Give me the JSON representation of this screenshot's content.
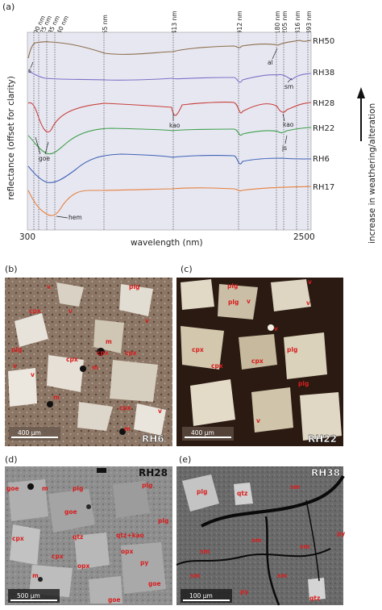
{
  "panel_a": {
    "label": "(a)",
    "wavelength_marks": [
      "390 nm",
      "425 nm",
      "485 nm",
      "540 nm",
      "965 nm",
      "1413 nm",
      "1912 nm",
      "2180 nm",
      "2205 nm",
      "2316 nm",
      "2393 nm"
    ],
    "y_axis_label": "reflectance (offset for clarity)",
    "x_axis_label": "wavelength (nm)",
    "x_min_label": "300",
    "x_max_label": "2500",
    "right_label": "increase in weathering/alteration",
    "spectra": [
      {
        "name": "RH50",
        "color": "#8c6e4a"
      },
      {
        "name": "RH38",
        "color": "#7a72c8"
      },
      {
        "name": "RH28",
        "color": "#c8413c"
      },
      {
        "name": "RH22",
        "color": "#3fa04a"
      },
      {
        "name": "RH6",
        "color": "#3f62b4"
      },
      {
        "name": "RH17",
        "color": "#e6803a"
      }
    ],
    "annotations": {
      "s": "s",
      "al": "al",
      "sm": "sm",
      "goe": "goe",
      "kao1": "kao",
      "kao2": "kao",
      "js": "js",
      "hem": "hem"
    }
  },
  "panel_b": {
    "label": "(b)",
    "sample": "RH6",
    "scale": "400 µm",
    "minerals": {
      "v1": "v",
      "plg1": "plg",
      "cpx1": "cpx",
      "v2": "v",
      "v3": "v",
      "cpx2": "cpx",
      "m1": "m",
      "plg2": "plg",
      "v4": "v",
      "m2": "m",
      "cpx3": "cpx",
      "cpx4": "cpx",
      "v5": "v",
      "m3": "m",
      "cpx5": "cpx",
      "v6": "v",
      "m4": "m"
    }
  },
  "panel_c": {
    "label": "(c)",
    "sample": "RH22",
    "scale": "400 µm",
    "minerals": {
      "plg1": "plg",
      "v1": "v",
      "plg2": "plg",
      "v2": "v",
      "v3": "v",
      "cpx1": "cpx",
      "v4": "v",
      "plg3": "plg",
      "cpx2": "cpx",
      "cpx3": "cpx",
      "plg4": "plg",
      "v5": "v"
    }
  },
  "panel_d": {
    "label": "(d)",
    "sample": "RH28",
    "scale": "500 µm",
    "minerals": {
      "goe1": "goe",
      "m1": "m",
      "plg1": "plg",
      "plg2": "plg",
      "goe2": "goe",
      "cpx1": "cpx",
      "qtz": "qtz",
      "qtzkao": "qtz+kao",
      "plg3": "plg",
      "cpx2": "cpx",
      "opx1": "opx",
      "py": "py",
      "m2": "m",
      "opx2": "opx",
      "goe3": "goe",
      "goe4": "goe"
    }
  },
  "panel_e": {
    "label": "(e)",
    "sample": "RH38",
    "scale": "100 µm",
    "minerals": {
      "plg": "plg",
      "qtz1": "qtz",
      "sm1": "sm",
      "sm2": "sm",
      "py1": "py",
      "sm3": "sm",
      "sm4": "sm",
      "sm5": "sm",
      "sm6": "sm",
      "py2": "py",
      "qtz2": "qtz"
    }
  }
}
